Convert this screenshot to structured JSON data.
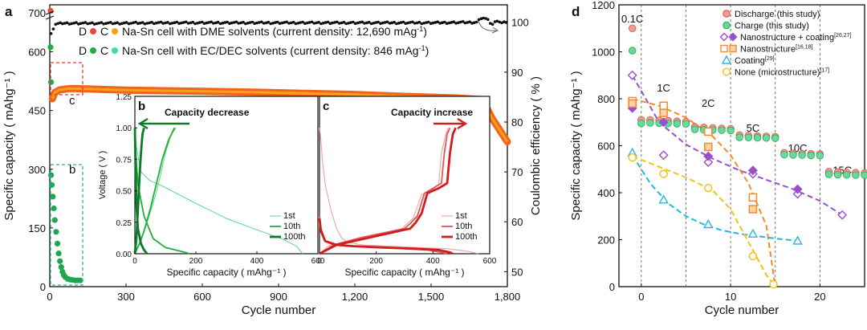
{
  "panels": {
    "a": {
      "label": "a"
    },
    "b": {
      "label": "b"
    },
    "c": {
      "label": "c"
    },
    "d": {
      "label": "d"
    }
  },
  "colors": {
    "discharge": "#e84a3c",
    "charge": "#1fae4b",
    "charge_light": "#6dd6a0",
    "dme_line": "#f7a11a",
    "dme_band": "#f0641e",
    "ec_line": "#3fd9c4",
    "ec_point": "#1fa650",
    "ce": "#111111",
    "b_light": "#57d88a",
    "b_mid": "#1fae3e",
    "b_dark": "#0a7d28",
    "c_light": "#f19a9a",
    "c_mid": "#e5535a",
    "c_dark": "#d21d1d",
    "coating_nano": "#9a4fd1",
    "nano": "#f08a2a",
    "coat": "#27b6e0",
    "none": "#f2c21a"
  },
  "chart_data": [
    {
      "id": "a",
      "type": "scatter",
      "xlabel": "Cycle number",
      "ylabel": "Specific capacity ( mAhg⁻¹ )",
      "y2label": "Coulombic efficiency ( % )",
      "xlim": [
        0,
        1800
      ],
      "ylim": [
        0,
        720
      ],
      "y2lim": [
        47,
        103.5
      ],
      "xticks": [
        "0",
        "300",
        "600",
        "900",
        "1,200",
        "1,500",
        "1,800"
      ],
      "yticks": [
        "0",
        "150",
        "300",
        "450",
        "600",
        "700"
      ],
      "y2ticks": [
        "50",
        "60",
        "70",
        "80",
        "90",
        "100"
      ],
      "legend": [
        {
          "prefix": "D",
          "mid": "C",
          "text": "Na-Sn cell with DME solvents (current density: 12,690 mAg",
          "sup": "-1",
          "close": ")"
        },
        {
          "prefix": "D",
          "mid": "C",
          "text": "Na-Sn cell with EC/DEC solvents (current density: 846 mAg",
          "sup": "-1",
          "close": ")"
        }
      ],
      "inset_labels": {
        "b": "b",
        "c": "c"
      },
      "series": [
        {
          "name": "DME capacity",
          "x": [
            10,
            20,
            40,
            80,
            150,
            300,
            500,
            800,
            1000,
            1200,
            1400,
            1600,
            1700,
            1720,
            1740,
            1760,
            1780,
            1800
          ],
          "y": [
            480,
            496,
            503,
            506,
            505,
            502,
            500,
            497,
            494,
            491,
            486,
            482,
            478,
            455,
            430,
            410,
            390,
            370
          ]
        },
        {
          "name": "DME coulombic efficiency",
          "x": [
            5,
            20,
            50,
            200,
            500,
            900,
            1200,
            1500,
            1680,
            1700,
            1720,
            1740,
            1760,
            1780,
            1800
          ],
          "y": [
            97.6,
            99.6,
            99.8,
            99.8,
            99.9,
            99.9,
            99.9,
            99.9,
            100.0,
            101.0,
            100.6,
            99.5,
            100.4,
            99.8,
            100.2
          ]
        },
        {
          "name": "EC/DEC capacity",
          "x": [
            5,
            8,
            12,
            16,
            20,
            25,
            30,
            35,
            40,
            45,
            50,
            55,
            60,
            70,
            80,
            90,
            100,
            110,
            120
          ],
          "y": [
            285,
            260,
            230,
            200,
            170,
            140,
            110,
            85,
            65,
            50,
            38,
            30,
            25,
            20,
            18,
            17,
            16,
            16,
            16
          ]
        },
        {
          "name": "EC/DEC coulombic efficiency",
          "x": [
            3,
            5,
            10
          ],
          "y": [
            95.0,
            88.0,
            96.0
          ]
        }
      ]
    },
    {
      "id": "b",
      "type": "line",
      "title": "Capacity decrease",
      "xlabel": "Specific capacity ( mAhg⁻¹ )",
      "ylabel": "Voltage ( V )",
      "xlim": [
        0,
        600
      ],
      "ylim": [
        0,
        1.25
      ],
      "xticks": [
        "0",
        "200",
        "400",
        "600"
      ],
      "yticks": [
        "0.00",
        "0.25",
        "0.50",
        "0.75",
        "1.00",
        "1.25"
      ],
      "legend": [
        "1st",
        "10th",
        "100th"
      ],
      "series": [
        {
          "name": "1st discharge",
          "x": [
            0,
            5,
            20,
            50,
            80,
            120,
            200,
            300,
            400,
            480,
            530,
            550
          ],
          "y": [
            1.0,
            0.85,
            0.65,
            0.58,
            0.55,
            0.5,
            0.4,
            0.28,
            0.19,
            0.12,
            0.06,
            0.0
          ]
        },
        {
          "name": "1st charge",
          "x": [
            0,
            20,
            40,
            60,
            80,
            100,
            120,
            135
          ],
          "y": [
            0.0,
            0.1,
            0.25,
            0.4,
            0.58,
            0.8,
            0.95,
            1.0
          ]
        },
        {
          "name": "10th discharge",
          "x": [
            0,
            3,
            10,
            30,
            60,
            100,
            150,
            180
          ],
          "y": [
            1.0,
            0.8,
            0.55,
            0.3,
            0.12,
            0.05,
            0.02,
            0.0
          ]
        },
        {
          "name": "10th charge",
          "x": [
            0,
            15,
            30,
            50,
            70,
            90,
            110,
            130
          ],
          "y": [
            0.0,
            0.08,
            0.18,
            0.35,
            0.55,
            0.75,
            0.9,
            1.0
          ]
        },
        {
          "name": "100th discharge",
          "x": [
            0,
            2,
            5,
            10,
            20,
            30,
            40
          ],
          "y": [
            1.0,
            0.7,
            0.4,
            0.2,
            0.08,
            0.03,
            0.0
          ]
        },
        {
          "name": "100th charge",
          "x": [
            0,
            5,
            10,
            15,
            20,
            25,
            30
          ],
          "y": [
            0.0,
            0.12,
            0.35,
            0.6,
            0.8,
            0.95,
            1.0
          ]
        }
      ]
    },
    {
      "id": "c",
      "type": "line",
      "title": "Capacity increase",
      "xlabel": "Specific capacity ( mAhg⁻¹ )",
      "xlim": [
        0,
        600
      ],
      "ylim": [
        0,
        1.25
      ],
      "xticks": [
        "0",
        "200",
        "400",
        "600"
      ],
      "legend": [
        "1st",
        "10th",
        "100th"
      ],
      "series": [
        {
          "name": "1st discharge",
          "x": [
            0,
            5,
            10,
            20,
            40,
            60,
            80,
            100,
            150,
            250,
            350,
            450,
            520,
            560
          ],
          "y": [
            1.0,
            0.9,
            0.75,
            0.55,
            0.35,
            0.2,
            0.12,
            0.09,
            0.07,
            0.06,
            0.05,
            0.04,
            0.02,
            0.0
          ]
        },
        {
          "name": "1st charge",
          "x": [
            0,
            30,
            150,
            280,
            300,
            330,
            360,
            380,
            400,
            420,
            430,
            445,
            455
          ],
          "y": [
            0.0,
            0.06,
            0.12,
            0.18,
            0.22,
            0.28,
            0.47,
            0.49,
            0.51,
            0.55,
            0.8,
            0.95,
            1.0
          ]
        },
        {
          "name": "10th discharge",
          "x": [
            0,
            5,
            20,
            50,
            100,
            200,
            300,
            380,
            430,
            450
          ],
          "y": [
            0.3,
            0.2,
            0.1,
            0.07,
            0.06,
            0.05,
            0.04,
            0.03,
            0.01,
            0.0
          ]
        },
        {
          "name": "10th charge",
          "x": [
            0,
            50,
            150,
            300,
            320,
            345,
            370,
            400,
            430,
            440,
            450,
            460
          ],
          "y": [
            0.0,
            0.07,
            0.13,
            0.2,
            0.24,
            0.3,
            0.48,
            0.52,
            0.56,
            0.8,
            0.95,
            1.0
          ]
        },
        {
          "name": "100th discharge",
          "x": [
            0,
            5,
            20,
            60,
            120,
            220,
            330,
            420,
            460,
            470
          ],
          "y": [
            0.28,
            0.18,
            0.1,
            0.07,
            0.06,
            0.05,
            0.04,
            0.03,
            0.01,
            0.0
          ]
        },
        {
          "name": "100th charge",
          "x": [
            0,
            60,
            200,
            320,
            340,
            360,
            380,
            420,
            450,
            460,
            470,
            480
          ],
          "y": [
            0.0,
            0.07,
            0.14,
            0.2,
            0.25,
            0.32,
            0.48,
            0.52,
            0.56,
            0.8,
            0.95,
            1.0
          ]
        }
      ]
    },
    {
      "id": "d",
      "type": "scatter",
      "xlabel": "Cycle number",
      "ylabel": "Specific capacity ( mAhg⁻¹ )",
      "xlim": [
        -2.5,
        25
      ],
      "ylim": [
        0,
        1200
      ],
      "xticks": [
        "0",
        "10",
        "20"
      ],
      "yticks": [
        "0",
        "200",
        "400",
        "600",
        "800",
        "1000",
        "1200"
      ],
      "rate_labels": [
        "0.1C",
        "1C",
        "2C",
        "5C",
        "10C",
        "15C"
      ],
      "legend": [
        {
          "text": "Discharge (this study)"
        },
        {
          "text": "Charge (this study)"
        },
        {
          "text": "Nanostructure + coating",
          "sup": "[26,27]"
        },
        {
          "text": "Nanostructure",
          "sup": "[16,18]"
        },
        {
          "text": "Coating",
          "sup": "[29]"
        },
        {
          "text": "None (microstructure)",
          "sup": "[17]"
        }
      ],
      "series": [
        {
          "name": "Discharge (this study)",
          "x": [
            -1,
            0,
            1,
            2,
            3,
            4,
            5,
            6,
            7,
            8,
            9,
            10,
            11,
            12,
            13,
            14,
            15,
            16,
            17,
            18,
            19,
            20,
            21,
            22,
            23,
            24,
            25
          ],
          "y": [
            1100,
            710,
            710,
            708,
            706,
            704,
            702,
            680,
            678,
            676,
            674,
            672,
            645,
            643,
            641,
            640,
            638,
            570,
            568,
            566,
            565,
            564,
            490,
            488,
            486,
            485,
            484
          ]
        },
        {
          "name": "Charge (this study)",
          "x": [
            -1,
            0,
            1,
            2,
            3,
            4,
            5,
            6,
            7,
            8,
            9,
            10,
            11,
            12,
            13,
            14,
            15,
            16,
            17,
            18,
            19,
            20,
            21,
            22,
            23,
            24,
            25
          ],
          "y": [
            1005,
            695,
            697,
            696,
            695,
            694,
            693,
            670,
            668,
            667,
            666,
            665,
            636,
            635,
            634,
            633,
            632,
            562,
            561,
            560,
            559,
            558,
            478,
            477,
            476,
            475,
            475
          ]
        },
        {
          "name": "Nanostructure + coating",
          "x": [
            -1,
            2.5,
            7.5,
            12.5,
            17.5,
            22.5
          ],
          "y": [
            900,
            560,
            530,
            480,
            395,
            305
          ],
          "x2": [
            -1,
            2.5,
            7.5,
            12.5,
            17.5
          ],
          "y2": [
            760,
            700,
            555,
            495,
            415
          ],
          "fit": {
            "x": [
              -1,
              2,
              5,
              8,
              11,
              14,
              17,
              20,
              22.5
            ],
            "y": [
              900,
              700,
              605,
              545,
              495,
              455,
              415,
              365,
              305
            ]
          }
        },
        {
          "name": "Nanostructure",
          "x": [
            -1,
            2.5,
            7.5,
            12.5
          ],
          "y": [
            790,
            770,
            660,
            380
          ],
          "x2": [
            -1,
            2.5,
            7.5,
            12.5
          ],
          "y2": [
            780,
            740,
            595,
            330
          ],
          "fit": {
            "x": [
              -1,
              2,
              5,
              8,
              10,
              12,
              14,
              15
            ],
            "y": [
              800,
              770,
              720,
              640,
              560,
              440,
              260,
              0
            ]
          }
        },
        {
          "name": "Coating",
          "x": [
            -1,
            2.5,
            7.5,
            12.5,
            17.5
          ],
          "y": [
            570,
            370,
            265,
            225,
            195
          ],
          "fit": {
            "x": [
              -1,
              1,
              3,
              5,
              7,
              9,
              11,
              13,
              15,
              17.5
            ],
            "y": [
              560,
              440,
              355,
              300,
              265,
              240,
              225,
              215,
              205,
              195
            ]
          }
        },
        {
          "name": "None (microstructure)",
          "x": [
            -1,
            2.5,
            7.5,
            12.5,
            14.8
          ],
          "y": [
            550,
            480,
            420,
            130,
            10
          ],
          "fit": {
            "x": [
              -1,
              2,
              5,
              8,
              10,
              12,
              14,
              15
            ],
            "y": [
              555,
              510,
              465,
              410,
              330,
              190,
              50,
              0
            ]
          }
        }
      ]
    }
  ]
}
